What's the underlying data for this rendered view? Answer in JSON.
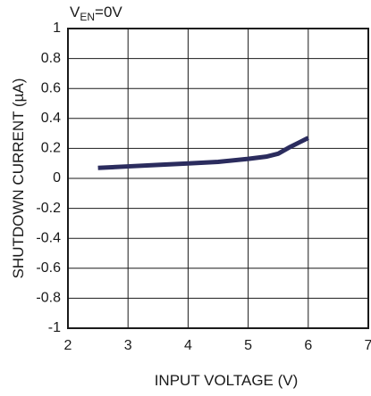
{
  "condition": {
    "prefix": "V",
    "sub": "EN",
    "suffix": "=0V"
  },
  "chart_data": {
    "type": "line",
    "xlabel": "INPUT VOLTAGE (V)",
    "ylabel": "SHUTDOWN CURRENT (µA)",
    "xlim": [
      2,
      7
    ],
    "ylim": [
      -1,
      1
    ],
    "x_ticks": [
      "2",
      "3",
      "4",
      "5",
      "6",
      "7"
    ],
    "y_ticks": [
      "1",
      "0.8",
      "0.6",
      "0.4",
      "0.2",
      "0",
      "-0.2",
      "-0.4",
      "-0.6",
      "-0.8",
      "-1"
    ],
    "grid": true,
    "series": [
      {
        "color": "#2b2c5e",
        "x": [
          2.5,
          3.0,
          3.5,
          4.0,
          4.5,
          5.0,
          5.3,
          5.5,
          5.7,
          5.85,
          6.0
        ],
        "y": [
          0.07,
          0.08,
          0.09,
          0.1,
          0.11,
          0.13,
          0.145,
          0.165,
          0.21,
          0.24,
          0.27
        ]
      }
    ]
  }
}
